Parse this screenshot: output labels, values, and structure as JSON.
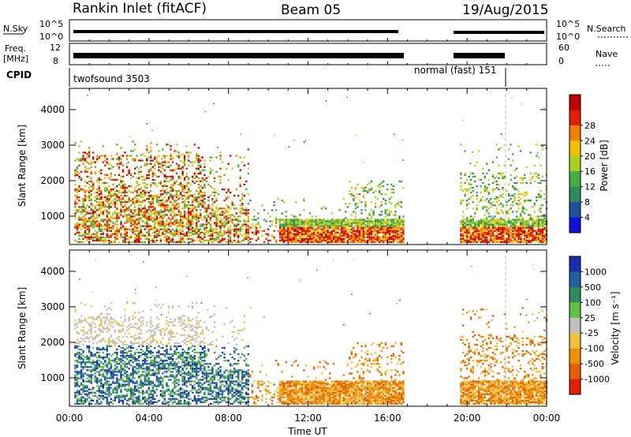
{
  "header": {
    "title": "Rankin Inlet (fitACF)",
    "beam": "Beam 05",
    "date": "19/Aug/2015"
  },
  "strips": {
    "nsky_label": "N.Sky",
    "nsky_ticks": [
      "10^5",
      "10^0"
    ],
    "nsearch_label": "N.Search",
    "nsearch_ticks": [
      "10^5",
      "10^0"
    ],
    "freq_label_1": "Freq.",
    "freq_label_2": "[MHz]",
    "freq_ticks": [
      "12",
      "8"
    ],
    "nave_label": "Nave",
    "nave_ticks": [
      "60",
      "0"
    ],
    "cpid_label": "CPID",
    "cpid_mode_1": "twofsound 3503",
    "cpid_mode_2": "normal (fast) 151"
  },
  "chart_data": [
    {
      "type": "heatmap",
      "name": "power",
      "ylabel": "Slant Range [km]",
      "yticks": [
        "1000",
        "2000",
        "3000",
        "4000"
      ],
      "ylim": [
        200,
        4600
      ],
      "colorbar_label": "Power [dB]",
      "colorbar_ticks": [
        "4",
        "8",
        "12",
        "16",
        "20",
        "24",
        "28"
      ],
      "colors": [
        "#1010e0",
        "#2050a0",
        "#2f8a5a",
        "#40b040",
        "#a8d020",
        "#f0c000",
        "#f08000",
        "#e02000",
        "#c00000"
      ]
    },
    {
      "type": "heatmap",
      "name": "velocity",
      "ylabel": "Slant Range [km]",
      "yticks": [
        "1000",
        "2000",
        "3000",
        "4000"
      ],
      "ylim": [
        200,
        4600
      ],
      "colorbar_label": "Velocity [m s⁻¹]",
      "colorbar_ticks": [
        "1000",
        "500",
        "100",
        "25",
        "-25",
        "-100",
        "-500",
        "-1000"
      ],
      "colors": [
        "#1830b0",
        "#2060a0",
        "#308a60",
        "#60c040",
        "#c0c0c0",
        "#f0c040",
        "#f09000",
        "#e06000",
        "#e02000"
      ]
    }
  ],
  "xaxis": {
    "label": "Time UT",
    "ticks": [
      "00:00",
      "04:00",
      "08:00",
      "12:00",
      "16:00",
      "20:00",
      "00:00"
    ]
  }
}
